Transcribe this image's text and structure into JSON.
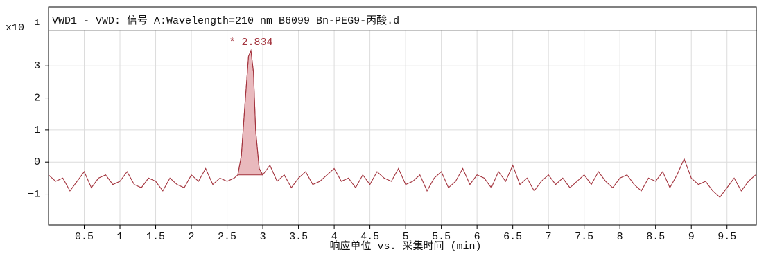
{
  "chart_data": {
    "type": "line",
    "title": "VWD1 - VWD: 信号 A:Wavelength=210 nm B6099 Bn-PEG9-丙酸.d",
    "y_label": "x10",
    "y_label_exponent": "1",
    "x_label": "响应单位 vs. 采集时间 (min)",
    "x": [
      0,
      0.1,
      0.2,
      0.3,
      0.4,
      0.5,
      0.6,
      0.7,
      0.8,
      0.9,
      1,
      1.1,
      1.2,
      1.3,
      1.4,
      1.5,
      1.6,
      1.7,
      1.8,
      1.9,
      2,
      2.1,
      2.2,
      2.3,
      2.4,
      2.5,
      2.6,
      2.65,
      2.7,
      2.75,
      2.8,
      2.834,
      2.87,
      2.9,
      2.95,
      3,
      3.1,
      3.2,
      3.3,
      3.4,
      3.5,
      3.6,
      3.7,
      3.8,
      3.9,
      4,
      4.1,
      4.2,
      4.3,
      4.4,
      4.5,
      4.6,
      4.7,
      4.8,
      4.9,
      5,
      5.1,
      5.2,
      5.3,
      5.4,
      5.5,
      5.6,
      5.7,
      5.8,
      5.9,
      6,
      6.1,
      6.2,
      6.3,
      6.4,
      6.5,
      6.6,
      6.7,
      6.8,
      6.9,
      7,
      7.1,
      7.2,
      7.3,
      7.4,
      7.5,
      7.6,
      7.7,
      7.8,
      7.9,
      8,
      8.1,
      8.2,
      8.3,
      8.4,
      8.5,
      8.6,
      8.7,
      8.8,
      8.9,
      9,
      9.1,
      9.2,
      9.3,
      9.4,
      9.5,
      9.6,
      9.7,
      9.8,
      9.9
    ],
    "series": [
      {
        "color": "#a3333d",
        "values": [
          -0.4,
          -0.6,
          -0.5,
          -0.9,
          -0.6,
          -0.3,
          -0.8,
          -0.5,
          -0.4,
          -0.7,
          -0.6,
          -0.3,
          -0.7,
          -0.8,
          -0.5,
          -0.6,
          -0.9,
          -0.5,
          -0.7,
          -0.8,
          -0.4,
          -0.6,
          -0.2,
          -0.7,
          -0.5,
          -0.6,
          -0.5,
          -0.4,
          0.2,
          1.8,
          3.3,
          3.48,
          2.8,
          1.0,
          -0.2,
          -0.4,
          -0.1,
          -0.6,
          -0.4,
          -0.8,
          -0.5,
          -0.3,
          -0.7,
          -0.6,
          -0.4,
          -0.2,
          -0.6,
          -0.5,
          -0.8,
          -0.4,
          -0.7,
          -0.3,
          -0.5,
          -0.6,
          -0.2,
          -0.7,
          -0.6,
          -0.4,
          -0.9,
          -0.5,
          -0.3,
          -0.8,
          -0.6,
          -0.2,
          -0.7,
          -0.4,
          -0.5,
          -0.8,
          -0.3,
          -0.6,
          -0.1,
          -0.7,
          -0.5,
          -0.9,
          -0.6,
          -0.4,
          -0.7,
          -0.5,
          -0.8,
          -0.6,
          -0.4,
          -0.7,
          -0.3,
          -0.6,
          -0.8,
          -0.5,
          -0.4,
          -0.7,
          -0.9,
          -0.5,
          -0.6,
          -0.3,
          -0.8,
          -0.4,
          0.1,
          -0.5,
          -0.7,
          -0.6,
          -0.9,
          -1.1,
          -0.8,
          -0.5,
          -0.9,
          -0.6,
          -0.4
        ]
      }
    ],
    "fill_range": [
      2.65,
      3.0
    ],
    "fill_color": "#e9b9bd",
    "annotations": [
      {
        "text": "* 2.834",
        "x": 2.834
      }
    ],
    "xlim": [
      0,
      9.92
    ],
    "ylim": [
      -1.96,
      4.84
    ],
    "xticks": [
      0.5,
      1,
      1.5,
      2,
      2.5,
      3,
      3.5,
      4,
      4.5,
      5,
      5.5,
      6,
      6.5,
      7,
      7.5,
      8,
      8.5,
      9,
      9.5
    ],
    "yticks": [
      {
        "value": -1,
        "label": "−1"
      },
      0,
      1,
      2,
      3
    ],
    "grid": true
  }
}
